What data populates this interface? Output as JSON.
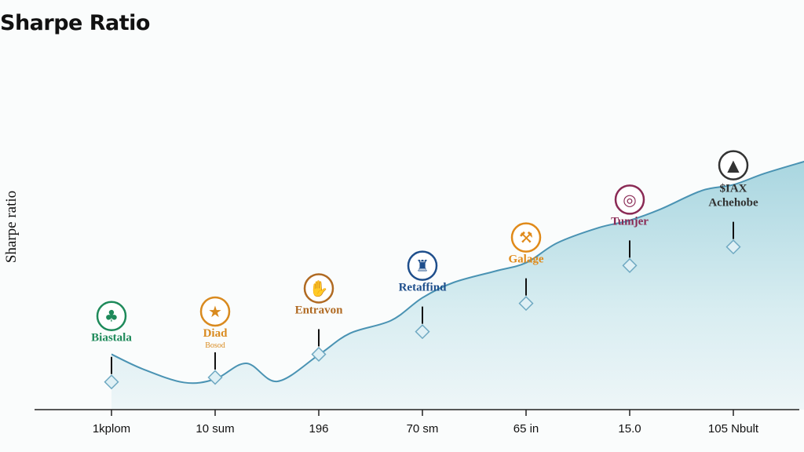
{
  "chart_data": {
    "type": "area",
    "title": "Sharpe Ratio",
    "ylabel": "Sharpe ratio",
    "xlabel": "",
    "x_ticks": [
      "1kplom",
      "10 sum",
      "196",
      "70 sm",
      "65 in",
      "15.0",
      "105 Nbult"
    ],
    "series": [
      {
        "x": [
          0,
          0.3,
          0.7,
          1,
          1.3,
          1.6,
          2,
          2.3,
          2.7,
          3,
          3.3,
          3.7,
          4,
          4.3,
          4.7,
          5,
          5.3,
          5.7,
          6,
          6.3,
          6.7
        ],
        "values": [
          0.98,
          0.72,
          0.48,
          0.54,
          0.82,
          0.5,
          0.97,
          1.35,
          1.58,
          1.98,
          2.25,
          2.45,
          2.6,
          2.95,
          3.22,
          3.35,
          3.55,
          3.88,
          3.98,
          4.18,
          4.4
        ]
      }
    ],
    "ylim": [
      0,
      5
    ],
    "xlim": [
      -0.7,
      6.7
    ],
    "grid": false,
    "fill_color": "#cfe8ee",
    "line_color": "#4a93b3",
    "annotations": [
      {
        "x": 0,
        "y": 0.49,
        "label": "Biastala",
        "sublabel": "",
        "color": "#1e8a5a",
        "icon": "tree-badge-icon"
      },
      {
        "x": 1,
        "y": 0.57,
        "label": "Diad",
        "sublabel": "Bosod",
        "color": "#d98a1f",
        "icon": "house-star-icon"
      },
      {
        "x": 2,
        "y": 0.98,
        "label": "Entravon",
        "sublabel": "",
        "color": "#b06a22",
        "icon": "hand-circle-icon"
      },
      {
        "x": 3,
        "y": 1.38,
        "label": "Retaffind",
        "sublabel": "",
        "color": "#1f4f8c",
        "icon": "tower-circle-icon"
      },
      {
        "x": 4,
        "y": 1.88,
        "label": "Galage",
        "sublabel": "",
        "color": "#e08a1a",
        "icon": "factory-icon"
      },
      {
        "x": 5,
        "y": 2.55,
        "label": "Tumjer",
        "sublabel": "",
        "color": "#8a2a55",
        "icon": "ring-badge-icon"
      },
      {
        "x": 6,
        "y": 2.88,
        "label": "Achehobe",
        "sublabel": "$IAX",
        "color": "#333333",
        "icon": "gray-seal-icon"
      }
    ]
  }
}
